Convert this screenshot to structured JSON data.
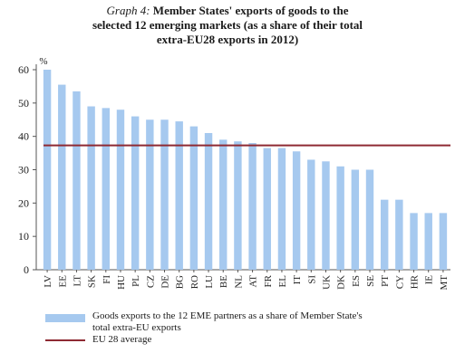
{
  "title": {
    "lead": "Graph 4:",
    "line1": "Member States' exports of goods to the",
    "line2": "selected 12 emerging markets (as a share of their total",
    "line3": "extra-EU28 exports in 2012)"
  },
  "chart_data": {
    "type": "bar",
    "ylabel": "%",
    "ylim": [
      0,
      60
    ],
    "yticks": [
      0,
      10,
      20,
      30,
      40,
      50,
      60
    ],
    "grid": false,
    "legend_position": "bottom",
    "categories": [
      "LV",
      "EE",
      "LT",
      "SK",
      "FI",
      "HU",
      "PL",
      "CZ",
      "DE",
      "BG",
      "RO",
      "LU",
      "BE",
      "NL",
      "AT",
      "FR",
      "EL",
      "IT",
      "SI",
      "UK",
      "DK",
      "ES",
      "SE",
      "PT",
      "CY",
      "HR",
      "IE",
      "MT"
    ],
    "series": [
      {
        "name": "Goods exports to the 12 EME partners as a share of Member State's total extra-EU exports",
        "type": "bar",
        "color": "#a6c9ef",
        "values": [
          60,
          55.5,
          53.5,
          49,
          48.5,
          48,
          46,
          45,
          45,
          44.5,
          43,
          41,
          39,
          38.5,
          38,
          36.5,
          36.5,
          35.5,
          33,
          32.5,
          31,
          30,
          30,
          21,
          21,
          17,
          17,
          17
        ]
      },
      {
        "name": "EU 28 average",
        "type": "hline",
        "color": "#8e2a33",
        "value": 37.3
      }
    ]
  },
  "legend": {
    "bar_label_line1": "Goods exports to the 12 EME partners as a share of Member State's",
    "bar_label_line2": "total extra-EU exports",
    "line_label": "EU 28 average"
  }
}
